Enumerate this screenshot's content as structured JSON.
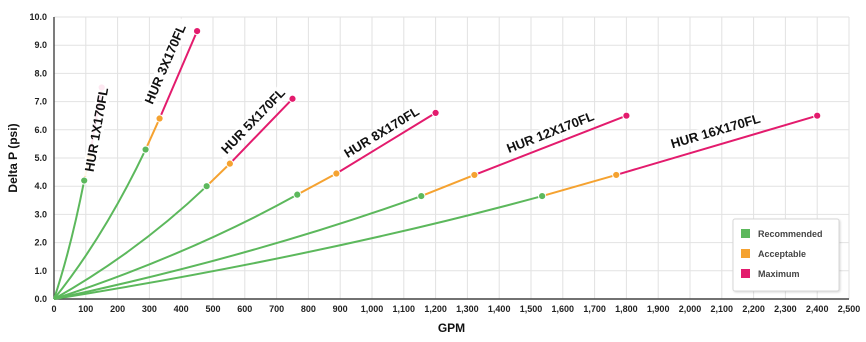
{
  "chart_data": {
    "type": "line",
    "xlabel": "GPM",
    "ylabel": "Delta P (psi)",
    "xlim": [
      0,
      2500
    ],
    "ylim": [
      0,
      10
    ],
    "x_ticks": [
      "0",
      "100",
      "200",
      "300",
      "400",
      "500",
      "600",
      "700",
      "800",
      "900",
      "1,000",
      "1,100",
      "1,200",
      "1,300",
      "1,400",
      "1,500",
      "1,600",
      "1,700",
      "1,800",
      "1,900",
      "2,000",
      "2,100",
      "2,200",
      "2,300",
      "2,400",
      "2,500"
    ],
    "y_ticks": [
      "0.0",
      "1.0",
      "2.0",
      "3.0",
      "4.0",
      "5.0",
      "6.0",
      "7.0",
      "8.0",
      "9.0",
      "10.0"
    ],
    "grid": true,
    "legend_position": "bottom-right",
    "ranges": [
      {
        "name": "Recommended",
        "color": "#5cb85c"
      },
      {
        "name": "Acceptable",
        "color": "#f5a230"
      },
      {
        "name": "Maximum",
        "color": "#e31b6d"
      }
    ],
    "series": [
      {
        "name": "HUR 1X170FL",
        "recommended": [
          95,
          4.2
        ],
        "acceptable": [
          112,
          5.05
        ],
        "maximum": [
          150,
          7.5
        ]
      },
      {
        "name": "HUR 3X170FL",
        "recommended": [
          288,
          5.3
        ],
        "acceptable": [
          332,
          6.4
        ],
        "maximum": [
          450,
          9.5
        ]
      },
      {
        "name": "HUR 5X170FL",
        "recommended": [
          480,
          4.0
        ],
        "acceptable": [
          553,
          4.8
        ],
        "maximum": [
          750,
          7.1
        ]
      },
      {
        "name": "HUR 8X170FL",
        "recommended": [
          765,
          3.7
        ],
        "acceptable": [
          888,
          4.45
        ],
        "maximum": [
          1200,
          6.6
        ]
      },
      {
        "name": "HUR 12X170FL",
        "recommended": [
          1155,
          3.65
        ],
        "acceptable": [
          1322,
          4.4
        ],
        "maximum": [
          1800,
          6.5
        ]
      },
      {
        "name": "HUR 16X170FL",
        "recommended": [
          1535,
          3.65
        ],
        "acceptable": [
          1768,
          4.4
        ],
        "maximum": [
          2400,
          6.5
        ]
      }
    ]
  }
}
